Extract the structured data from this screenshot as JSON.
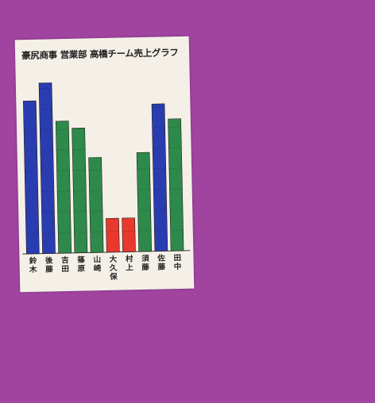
{
  "poster": {
    "title": "豪尻商事 営業部 高橋チーム売上グラフ"
  },
  "chart_data": {
    "type": "bar",
    "title": "豪尻商事 営業部 高橋チーム売上グラフ",
    "categories": [
      "鈴木",
      "後藤",
      "吉田",
      "篠原",
      "山崎",
      "大久保",
      "村上",
      "須藤",
      "佐藤",
      "田中"
    ],
    "values": [
      190,
      212,
      164,
      155,
      118,
      42,
      42,
      123,
      183,
      164
    ],
    "bar_colors": [
      "#2a3db0",
      "#2a3db0",
      "#2e8a4a",
      "#2e8a4a",
      "#2e8a4a",
      "#e8392c",
      "#e8392c",
      "#2e8a4a",
      "#2a3db0",
      "#2e8a4a"
    ],
    "grid": false
  }
}
